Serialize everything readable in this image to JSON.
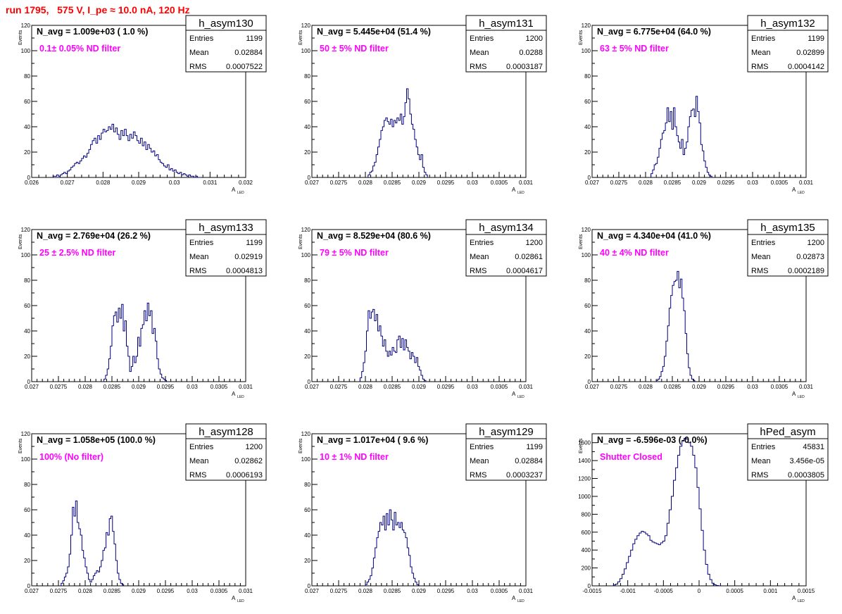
{
  "page": {
    "title": "run 1795,   575 V, I_pe ≈ 10.0 nA, 120 Hz"
  },
  "colors": {
    "hist": "#00007f",
    "title": "#ff0000",
    "annotation": "#ff00ff",
    "stats_text": "#000000"
  },
  "chart_data": [
    {
      "type": "bar",
      "histogram": true,
      "name": "h_asym130",
      "navg": "N_avg = 1.009e+03 ( 1.0 %)",
      "label": "0.1± 0.05% ND filter",
      "stats": {
        "entries_label": "Entries",
        "entries": "1199",
        "mean_label": "Mean",
        "mean": "0.02884",
        "rms_label": "RMS",
        "rms": "0.0007522"
      },
      "xlim": [
        0.026,
        0.032
      ],
      "ylim": [
        0,
        120
      ],
      "xticks": [
        0.026,
        0.027,
        0.028,
        0.029,
        0.03,
        0.031,
        0.032
      ],
      "xtick_labels": [
        "0.026",
        "0.027",
        "0.028",
        "0.029",
        "0.03",
        "0.031",
        "0.032"
      ],
      "yticks": [
        0,
        20,
        40,
        60,
        80,
        100,
        120
      ],
      "ytick_labels": [
        "0",
        "20",
        "40",
        "60",
        "80",
        "100",
        "120"
      ],
      "xlabel": "A",
      "xlabel_sub": "LED",
      "ylabel": "Events",
      "bins_start": 0.0266,
      "bin_width": 5e-05,
      "values": [
        1,
        1,
        2,
        1,
        2,
        3,
        4,
        3,
        5,
        6,
        8,
        9,
        11,
        12,
        11,
        13,
        15,
        17,
        16,
        19,
        22,
        26,
        29,
        31,
        27,
        33,
        30,
        35,
        38,
        36,
        37,
        40,
        38,
        42,
        36,
        39,
        34,
        30,
        37,
        33,
        38,
        33,
        29,
        34,
        31,
        36,
        33,
        29,
        27,
        31,
        25,
        28,
        22,
        26,
        23,
        20,
        21,
        17,
        18,
        14,
        12,
        11,
        9,
        8,
        10,
        6,
        7,
        5,
        6,
        4,
        3,
        4,
        2,
        3,
        2,
        1,
        2,
        1,
        1,
        0,
        1,
        0,
        0
      ]
    },
    {
      "type": "bar",
      "histogram": true,
      "name": "h_asym131",
      "navg": "N_avg = 5.445e+04 (51.4 %)",
      "label": "50 ± 5% ND filter",
      "stats": {
        "entries_label": "Entries",
        "entries": "1200",
        "mean_label": "Mean",
        "mean": "0.0288",
        "rms_label": "RMS",
        "rms": "0.0003187"
      },
      "xlim": [
        0.027,
        0.031
      ],
      "ylim": [
        0,
        120
      ],
      "xticks": [
        0.027,
        0.0275,
        0.028,
        0.0285,
        0.029,
        0.0295,
        0.03,
        0.0305,
        0.031
      ],
      "xtick_labels": [
        "0.027",
        "0.0275",
        "0.028",
        "0.0285",
        "0.029",
        "0.0295",
        "0.03",
        "0.0305",
        "0.031"
      ],
      "yticks": [
        0,
        20,
        40,
        60,
        80,
        100,
        120
      ],
      "ytick_labels": [
        "0",
        "20",
        "40",
        "60",
        "80",
        "100",
        "120"
      ],
      "xlabel": "A",
      "xlabel_sub": "LED",
      "ylabel": "Events",
      "bins_start": 0.02805,
      "bin_width": 3e-05,
      "values": [
        2,
        4,
        5,
        9,
        12,
        18,
        24,
        30,
        37,
        40,
        45,
        47,
        44,
        42,
        46,
        40,
        45,
        43,
        47,
        45,
        50,
        42,
        48,
        59,
        70,
        62,
        50,
        42,
        38,
        30,
        24,
        18,
        14,
        18,
        8,
        4,
        2
      ]
    },
    {
      "type": "bar",
      "histogram": true,
      "name": "h_asym132",
      "navg": "N_avg = 6.775e+04 (64.0 %)",
      "label": "63 ± 5% ND filter",
      "stats": {
        "entries_label": "Entries",
        "entries": "1199",
        "mean_label": "Mean",
        "mean": "0.02899",
        "rms_label": "RMS",
        "rms": "0.0004142"
      },
      "xlim": [
        0.027,
        0.031
      ],
      "ylim": [
        0,
        120
      ],
      "xticks": [
        0.027,
        0.0275,
        0.028,
        0.0285,
        0.029,
        0.0295,
        0.03,
        0.0305,
        0.031
      ],
      "xtick_labels": [
        "0.027",
        "0.0275",
        "0.028",
        "0.0285",
        "0.029",
        "0.0295",
        "0.03",
        "0.0305",
        "0.031"
      ],
      "yticks": [
        0,
        20,
        40,
        60,
        80,
        100,
        120
      ],
      "ytick_labels": [
        "0",
        "20",
        "40",
        "60",
        "80",
        "100",
        "120"
      ],
      "xlabel": "A",
      "xlabel_sub": "LED",
      "ylabel": "Events",
      "bins_start": 0.0281,
      "bin_width": 3e-05,
      "values": [
        3,
        6,
        10,
        11,
        16,
        23,
        30,
        35,
        37,
        43,
        55,
        44,
        52,
        38,
        55,
        40,
        33,
        28,
        23,
        30,
        18,
        23,
        28,
        40,
        48,
        53,
        54,
        48,
        64,
        52,
        43,
        26,
        21,
        13,
        8,
        4,
        2,
        1
      ]
    },
    {
      "type": "bar",
      "histogram": true,
      "name": "h_asym133",
      "navg": "N_avg = 2.769e+04 (26.2 %)",
      "label": "25 ± 2.5% ND filter",
      "stats": {
        "entries_label": "Entries",
        "entries": "1199",
        "mean_label": "Mean",
        "mean": "0.02919",
        "rms_label": "RMS",
        "rms": "0.0004813"
      },
      "xlim": [
        0.027,
        0.031
      ],
      "ylim": [
        0,
        120
      ],
      "xticks": [
        0.027,
        0.0275,
        0.028,
        0.0285,
        0.029,
        0.0295,
        0.03,
        0.0305,
        0.031
      ],
      "xtick_labels": [
        "0.027",
        "0.0275",
        "0.028",
        "0.0285",
        "0.029",
        "0.0295",
        "0.03",
        "0.0305",
        "0.031"
      ],
      "yticks": [
        0,
        20,
        40,
        60,
        80,
        100,
        120
      ],
      "ytick_labels": [
        "0",
        "20",
        "40",
        "60",
        "80",
        "100",
        "120"
      ],
      "xlabel": "A",
      "xlabel_sub": "LED",
      "ylabel": "Events",
      "bins_start": 0.02835,
      "bin_width": 3e-05,
      "values": [
        2,
        5,
        10,
        18,
        28,
        44,
        52,
        55,
        47,
        58,
        50,
        61,
        40,
        48,
        28,
        20,
        8,
        12,
        20,
        15,
        20,
        35,
        28,
        42,
        45,
        56,
        48,
        62,
        52,
        56,
        38,
        42,
        32,
        18,
        10,
        6,
        3,
        2,
        1
      ]
    },
    {
      "type": "bar",
      "histogram": true,
      "name": "h_asym134",
      "navg": "N_avg = 8.529e+04 (80.6 %)",
      "label": "79 ± 5% ND filter",
      "stats": {
        "entries_label": "Entries",
        "entries": "1200",
        "mean_label": "Mean",
        "mean": "0.02861",
        "rms_label": "RMS",
        "rms": "0.0004617"
      },
      "xlim": [
        0.027,
        0.031
      ],
      "ylim": [
        0,
        120
      ],
      "xticks": [
        0.027,
        0.0275,
        0.028,
        0.0285,
        0.029,
        0.0295,
        0.03,
        0.0305,
        0.031
      ],
      "xtick_labels": [
        "0.027",
        "0.0275",
        "0.028",
        "0.0285",
        "0.029",
        "0.0295",
        "0.03",
        "0.0305",
        "0.031"
      ],
      "yticks": [
        0,
        20,
        40,
        60,
        80,
        100,
        120
      ],
      "ytick_labels": [
        "0",
        "20",
        "40",
        "60",
        "80",
        "100",
        "120"
      ],
      "xlabel": "A",
      "xlabel_sub": "LED",
      "ylabel": "Events",
      "bins_start": 0.0279,
      "bin_width": 3e-05,
      "values": [
        3,
        8,
        15,
        24,
        40,
        56,
        50,
        55,
        57,
        48,
        53,
        40,
        44,
        36,
        28,
        33,
        24,
        20,
        24,
        21,
        27,
        24,
        23,
        33,
        36,
        27,
        34,
        25,
        33,
        27,
        24,
        18,
        23,
        20,
        15,
        19,
        12,
        9,
        5,
        2,
        1
      ]
    },
    {
      "type": "bar",
      "histogram": true,
      "name": "h_asym135",
      "navg": "N_avg = 4.340e+04 (41.0 %)",
      "label": "40 ± 4% ND filter",
      "stats": {
        "entries_label": "Entries",
        "entries": "1200",
        "mean_label": "Mean",
        "mean": "0.02873",
        "rms_label": "RMS",
        "rms": "0.0002189"
      },
      "xlim": [
        0.027,
        0.031
      ],
      "ylim": [
        0,
        120
      ],
      "xticks": [
        0.027,
        0.0275,
        0.028,
        0.0285,
        0.029,
        0.0295,
        0.03,
        0.0305,
        0.031
      ],
      "xtick_labels": [
        "0.027",
        "0.0275",
        "0.028",
        "0.0285",
        "0.029",
        "0.0295",
        "0.03",
        "0.0305",
        "0.031"
      ],
      "yticks": [
        0,
        20,
        40,
        60,
        80,
        100,
        120
      ],
      "ytick_labels": [
        "0",
        "20",
        "40",
        "60",
        "80",
        "100",
        "120"
      ],
      "xlabel": "A",
      "xlabel_sub": "LED",
      "ylabel": "Events",
      "bins_start": 0.0282,
      "bin_width": 3e-05,
      "values": [
        1,
        2,
        4,
        8,
        12,
        20,
        32,
        44,
        58,
        68,
        76,
        79,
        80,
        87,
        74,
        81,
        66,
        56,
        38,
        22,
        11,
        5,
        2,
        1
      ]
    },
    {
      "type": "bar",
      "histogram": true,
      "name": "h_asym128",
      "navg": "N_avg = 1.058e+05 (100.0 %)",
      "label": "100% (No filter)",
      "stats": {
        "entries_label": "Entries",
        "entries": "1200",
        "mean_label": "Mean",
        "mean": "0.02862",
        "rms_label": "RMS",
        "rms": "0.0006193"
      },
      "xlim": [
        0.027,
        0.031
      ],
      "ylim": [
        0,
        120
      ],
      "xticks": [
        0.027,
        0.0275,
        0.028,
        0.0285,
        0.029,
        0.0295,
        0.03,
        0.0305,
        0.031
      ],
      "xtick_labels": [
        "0.027",
        "0.0275",
        "0.028",
        "0.0285",
        "0.029",
        "0.0295",
        "0.03",
        "0.0305",
        "0.031"
      ],
      "yticks": [
        0,
        20,
        40,
        60,
        80,
        100,
        120
      ],
      "ytick_labels": [
        "0",
        "20",
        "40",
        "60",
        "80",
        "100",
        "120"
      ],
      "xlabel": "A",
      "xlabel_sub": "LED",
      "ylabel": "Events",
      "bins_start": 0.02755,
      "bin_width": 3e-05,
      "values": [
        2,
        4,
        7,
        10,
        15,
        25,
        40,
        62,
        55,
        67,
        50,
        45,
        40,
        28,
        22,
        15,
        10,
        5,
        3,
        5,
        8,
        10,
        12,
        11,
        15,
        20,
        28,
        30,
        42,
        40,
        53,
        55,
        43,
        33,
        20,
        10,
        5,
        2,
        1
      ]
    },
    {
      "type": "bar",
      "histogram": true,
      "name": "h_asym129",
      "navg": "N_avg = 1.017e+04 ( 9.6 %)",
      "label": "10 ± 1% ND filter",
      "stats": {
        "entries_label": "Entries",
        "entries": "1199",
        "mean_label": "Mean",
        "mean": "0.02884",
        "rms_label": "RMS",
        "rms": "0.0003237"
      },
      "xlim": [
        0.027,
        0.031
      ],
      "ylim": [
        0,
        120
      ],
      "xticks": [
        0.027,
        0.0275,
        0.028,
        0.0285,
        0.029,
        0.0295,
        0.03,
        0.0305,
        0.031
      ],
      "xtick_labels": [
        "0.027",
        "0.0275",
        "0.028",
        "0.0285",
        "0.029",
        "0.0295",
        "0.03",
        "0.0305",
        "0.031"
      ],
      "yticks": [
        0,
        20,
        40,
        60,
        80,
        100,
        120
      ],
      "ytick_labels": [
        "0",
        "20",
        "40",
        "60",
        "80",
        "100",
        "120"
      ],
      "xlabel": "A",
      "xlabel_sub": "LED",
      "ylabel": "Events",
      "bins_start": 0.028,
      "bin_width": 3e-05,
      "values": [
        1,
        3,
        5,
        8,
        14,
        22,
        30,
        38,
        43,
        50,
        48,
        55,
        44,
        57,
        48,
        60,
        52,
        44,
        58,
        48,
        50,
        46,
        50,
        44,
        42,
        38,
        30,
        24,
        15,
        10,
        6,
        3,
        1
      ]
    },
    {
      "type": "bar",
      "histogram": true,
      "name": "hPed_asym",
      "navg": "N_avg = -6.596e-03 (-0.0%)",
      "label": "Shutter Closed",
      "stats": {
        "entries_label": "Entries",
        "entries": "45831",
        "mean_label": "Mean",
        "mean": "3.456e-05",
        "rms_label": "RMS",
        "rms": "0.0003805"
      },
      "xlim": [
        -0.0015,
        0.0015
      ],
      "ylim": [
        0,
        1700
      ],
      "xticks": [
        -0.0015,
        -0.001,
        -0.0005,
        0,
        0.0005,
        0.001,
        0.0015
      ],
      "xtick_labels": [
        "-0.0015",
        "-0.001",
        "-0.0005",
        "0",
        "0.0005",
        "0.001",
        "0.0015"
      ],
      "yticks": [
        0,
        200,
        400,
        600,
        800,
        1000,
        1200,
        1400,
        1600
      ],
      "ytick_labels": [
        "0",
        "200",
        "400",
        "600",
        "800",
        "1000",
        "1200",
        "1400",
        "1600"
      ],
      "xlabel": "A",
      "xlabel_sub": "LED",
      "ylabel": "Events",
      "bins_start": -0.0012,
      "bin_width": 3e-05,
      "values": [
        10,
        20,
        45,
        80,
        130,
        190,
        260,
        330,
        400,
        470,
        520,
        560,
        590,
        610,
        600,
        580,
        560,
        510,
        490,
        480,
        470,
        460,
        480,
        500,
        560,
        700,
        850,
        1000,
        1180,
        1320,
        1460,
        1560,
        1620,
        1650,
        1640,
        1600,
        1560,
        1460,
        1320,
        1100,
        860,
        620,
        400,
        240,
        130,
        70,
        30,
        12,
        4,
        1
      ]
    }
  ]
}
